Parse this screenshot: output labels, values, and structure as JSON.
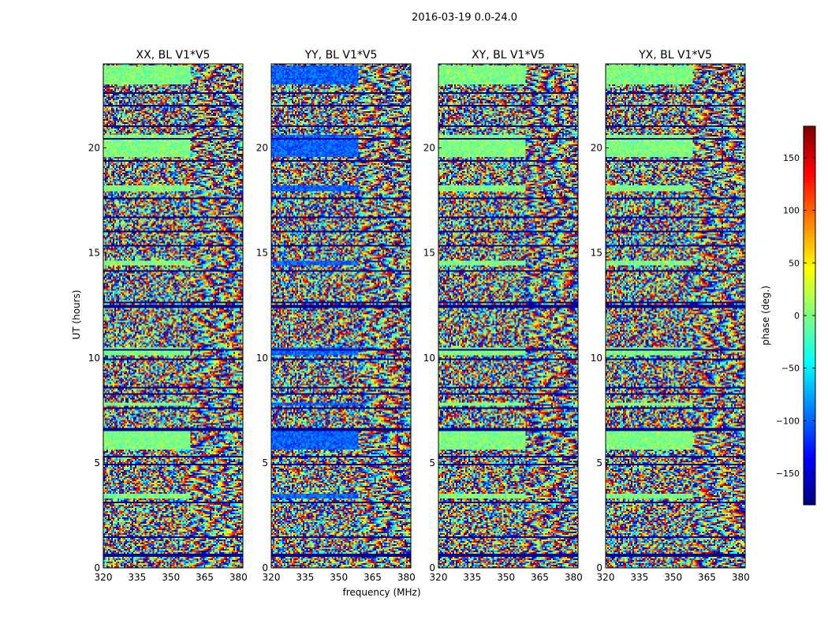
{
  "suptitle": "2016-03-19 0.0-24.0",
  "chart_data": {
    "type": "heatmap",
    "xlabel": "frequency (MHz)",
    "ylabel": "UT (hours)",
    "xlim": [
      320,
      382
    ],
    "ylim": [
      0,
      24
    ],
    "xticks": [
      320,
      335,
      350,
      365,
      380
    ],
    "yticks": [
      0,
      5,
      10,
      15,
      20
    ],
    "panels": [
      {
        "title": "XX, BL V1*V5",
        "tint": 0.0
      },
      {
        "title": "YY, BL V1*V5",
        "tint": -0.28
      },
      {
        "title": "XY, BL V1*V5",
        "tint": 0.0
      },
      {
        "title": "YX, BL V1*V5",
        "tint": 0.0
      }
    ],
    "colorbar": {
      "label": "phase (deg.)",
      "range": [
        -180,
        180
      ],
      "ticks": [
        150,
        100,
        50,
        0,
        -50,
        -100,
        -150
      ],
      "tick_labels": [
        "150",
        "100",
        "50",
        "0",
        "−50",
        "−100",
        "−150"
      ],
      "colormap": "jet",
      "colors": [
        "#00007f",
        "#0000ff",
        "#007fff",
        "#00ffff",
        "#7fff7f",
        "#ffff00",
        "#ff7f00",
        "#ff0000",
        "#7f0000"
      ]
    },
    "flagged_bands_ut": [
      [
        0.55,
        0.65
      ],
      [
        1.45,
        1.52
      ],
      [
        3.05,
        3.12
      ],
      [
        4.9,
        4.97
      ],
      [
        5.25,
        5.3
      ],
      [
        6.55,
        6.7
      ],
      [
        7.6,
        7.66
      ],
      [
        8.25,
        8.35
      ],
      [
        8.55,
        8.62
      ],
      [
        9.9,
        9.95
      ],
      [
        10.35,
        10.45
      ],
      [
        11.0,
        11.05
      ],
      [
        12.35,
        12.5
      ],
      [
        12.62,
        12.7
      ],
      [
        14.1,
        14.15
      ],
      [
        15.3,
        15.35
      ],
      [
        16.0,
        16.05
      ],
      [
        16.65,
        16.7
      ],
      [
        17.55,
        17.65
      ],
      [
        19.35,
        19.45
      ],
      [
        20.4,
        20.45
      ],
      [
        21.0,
        21.08
      ],
      [
        22.0,
        22.05
      ],
      [
        22.55,
        22.65
      ]
    ],
    "smooth_bands_ut": [
      [
        3.3,
        3.55
      ],
      [
        5.65,
        6.5
      ],
      [
        7.7,
        7.85
      ],
      [
        10.1,
        10.5
      ],
      [
        14.4,
        14.6
      ],
      [
        17.9,
        18.2
      ],
      [
        19.6,
        20.6
      ],
      [
        23.0,
        23.9
      ]
    ]
  }
}
